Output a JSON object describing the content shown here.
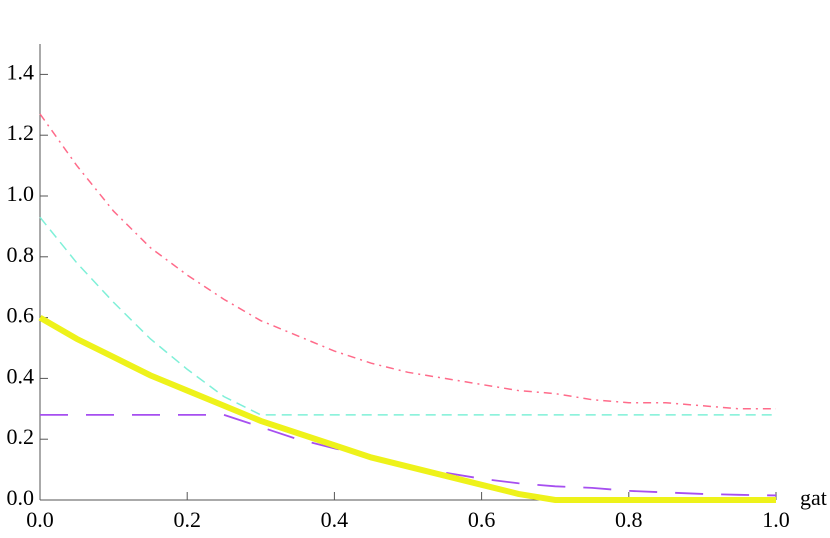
{
  "chart_data": {
    "type": "line",
    "x_label": "gat",
    "x": [
      0,
      0.05,
      0.1,
      0.15,
      0.2,
      0.25,
      0.3,
      0.35,
      0.4,
      0.45,
      0.5,
      0.55,
      0.6,
      0.65,
      0.7,
      0.75,
      0.8,
      0.85,
      0.9,
      0.95,
      1
    ],
    "series": [
      {
        "color": "#ff6b8a",
        "dash": "dashdot",
        "width": 1.5,
        "values": [
          1.27,
          1.1,
          0.95,
          0.83,
          0.74,
          0.66,
          0.59,
          0.54,
          0.49,
          0.45,
          0.42,
          0.4,
          0.38,
          0.36,
          0.35,
          0.33,
          0.32,
          0.32,
          0.31,
          0.3,
          0.3
        ]
      },
      {
        "color": "#7ff0d8",
        "dash": "dashed",
        "width": 1.5,
        "values": [
          0.93,
          0.78,
          0.65,
          0.53,
          0.43,
          0.34,
          0.28,
          0.28,
          0.28,
          0.28,
          0.28,
          0.28,
          0.28,
          0.28,
          0.28,
          0.28,
          0.28,
          0.28,
          0.28,
          0.28,
          0.28
        ]
      },
      {
        "color": "#a64ff0",
        "dash": "longdash",
        "width": 1.8,
        "values": [
          0.28,
          0.28,
          0.28,
          0.28,
          0.28,
          0.28,
          0.24,
          0.2,
          0.17,
          0.14,
          0.11,
          0.09,
          0.07,
          0.055,
          0.045,
          0.04,
          0.03,
          0.025,
          0.02,
          0.017,
          0.015
        ]
      },
      {
        "color": "#eef21a",
        "dash": "solid",
        "width": 6,
        "values": [
          0.6,
          0.53,
          0.47,
          0.41,
          0.36,
          0.31,
          0.26,
          0.22,
          0.18,
          0.14,
          0.11,
          0.08,
          0.05,
          0.02,
          0,
          0,
          0,
          0,
          0,
          0,
          0
        ]
      }
    ],
    "xlim": [
      0,
      1
    ],
    "ylim": [
      0,
      1.5
    ],
    "xticks": [
      {
        "value": 0,
        "label": "0.0"
      },
      {
        "value": 0.2,
        "label": "0.2"
      },
      {
        "value": 0.4,
        "label": "0.4"
      },
      {
        "value": 0.6,
        "label": "0.6"
      },
      {
        "value": 0.8,
        "label": "0.8"
      },
      {
        "value": 1,
        "label": "1.0"
      }
    ],
    "yticks": [
      {
        "value": 0,
        "label": "0.0"
      },
      {
        "value": 0.2,
        "label": "0.2"
      },
      {
        "value": 0.4,
        "label": "0.4"
      },
      {
        "value": 0.6,
        "label": "0.6"
      },
      {
        "value": 0.8,
        "label": "0.8"
      },
      {
        "value": 1,
        "label": "1.0"
      },
      {
        "value": 1.2,
        "label": "1.2"
      },
      {
        "value": 1.4,
        "label": "1.4"
      }
    ],
    "grid": false
  }
}
